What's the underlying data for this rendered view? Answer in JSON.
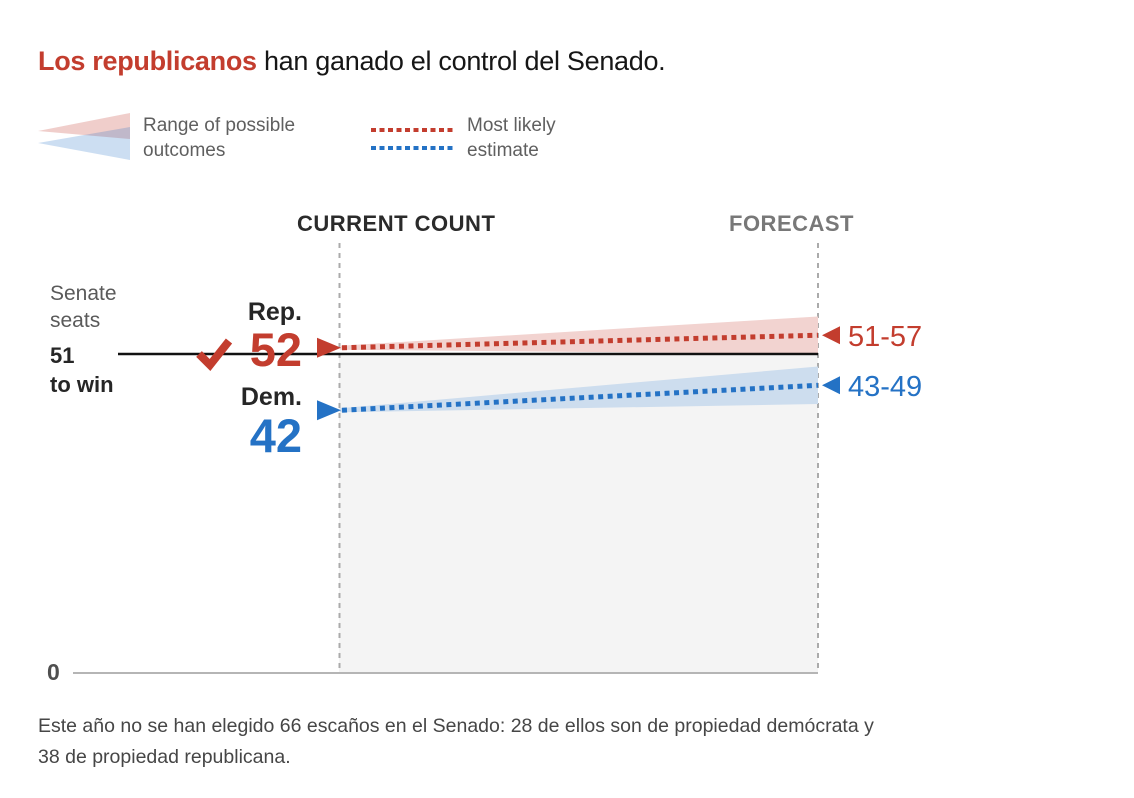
{
  "title": {
    "highlight": "Los republicanos",
    "rest": " han ganado el control del Senado."
  },
  "legend": {
    "range_line1": "Range of possible",
    "range_line2": "outcomes",
    "estimate_line1": "Most likely",
    "estimate_line2": "estimate"
  },
  "columns": {
    "current": "CURRENT COUNT",
    "forecast": "FORECAST"
  },
  "axis": {
    "seats_line1": "Senate",
    "seats_line2": "seats",
    "majority_line1": "51",
    "majority_line2": "to win",
    "zero": "0"
  },
  "parties": {
    "rep": {
      "label": "Rep.",
      "current": "52",
      "range": "51-57"
    },
    "dem": {
      "label": "Dem.",
      "current": "42",
      "range": "43-49"
    }
  },
  "footer": {
    "line1": "Este año no se han elegido 66 escaños en el Senado: 28 de ellos son de propiedad demócrata y",
    "line2": "38 de propiedad republicana."
  },
  "colors": {
    "republican": "#c33d2e",
    "democrat": "#2472c5",
    "republican_band": "#f2d3d0",
    "democrat_band": "#cdddee",
    "forecast_area_bg": "#f4f4f4",
    "gridline": "#ababab",
    "majority_line": "#111111",
    "baseline": "#b5b5b5"
  },
  "chart_data": {
    "type": "area",
    "title": "Los republicanos han ganado el control del Senado.",
    "x_categories": [
      "CURRENT COUNT",
      "FORECAST"
    ],
    "ylabel": "Senate seats",
    "ylim": [
      0,
      60
    ],
    "majority_value": 51,
    "majority_label": "51 to win",
    "legend": [
      "Range of possible outcomes",
      "Most likely estimate"
    ],
    "series": [
      {
        "name": "Rep.",
        "won_check": true,
        "current_count": 52,
        "forecast_estimate": 54,
        "forecast_range_low": 51,
        "forecast_range_high": 57,
        "range_label": "51-57",
        "color": "#c33d2e",
        "band_color": "#f2d3d0"
      },
      {
        "name": "Dem.",
        "won_check": false,
        "current_count": 42,
        "forecast_estimate": 46,
        "forecast_range_low": 43,
        "forecast_range_high": 49,
        "range_label": "43-49",
        "color": "#2472c5",
        "band_color": "#cdddee"
      }
    ],
    "footnote": "Este año no se han elegido 66 escaños en el Senado: 28 de ellos son de propiedad demócrata y 38 de propiedad republicana."
  }
}
